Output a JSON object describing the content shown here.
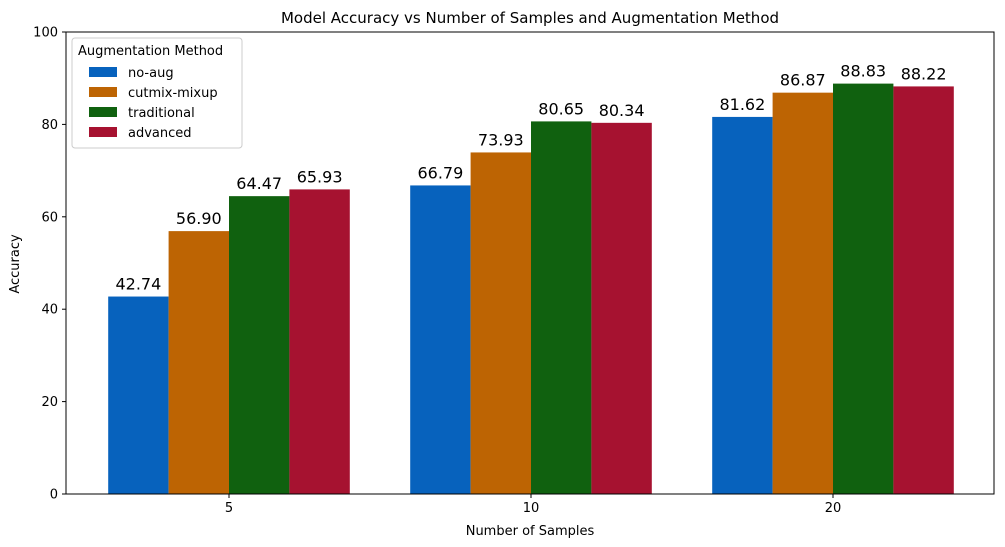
{
  "chart_data": {
    "type": "bar",
    "title": "Model Accuracy vs Number of Samples and Augmentation Method",
    "xlabel": "Number of Samples",
    "ylabel": "Accuracy",
    "categories": [
      "5",
      "10",
      "20"
    ],
    "ylim": [
      0,
      100
    ],
    "yticks": [
      0,
      20,
      40,
      60,
      80,
      100
    ],
    "grid": false,
    "legend": {
      "title": "Augmentation Method",
      "placement": "top-left"
    },
    "series": [
      {
        "name": "no-aug",
        "color": "#0762bd",
        "values": [
          42.74,
          66.79,
          81.62
        ],
        "labels": [
          "42.74",
          "66.79",
          "81.62"
        ]
      },
      {
        "name": "cutmix-mixup",
        "color": "#bd6403",
        "values": [
          56.9,
          73.93,
          86.87
        ],
        "labels": [
          "56.90",
          "73.93",
          "86.87"
        ]
      },
      {
        "name": "traditional",
        "color": "#10610f",
        "values": [
          64.47,
          80.65,
          88.83
        ],
        "labels": [
          "64.47",
          "80.65",
          "88.83"
        ]
      },
      {
        "name": "advanced",
        "color": "#a61230",
        "values": [
          65.93,
          80.34,
          88.22
        ],
        "labels": [
          "65.93",
          "80.34",
          "88.22"
        ]
      }
    ]
  }
}
